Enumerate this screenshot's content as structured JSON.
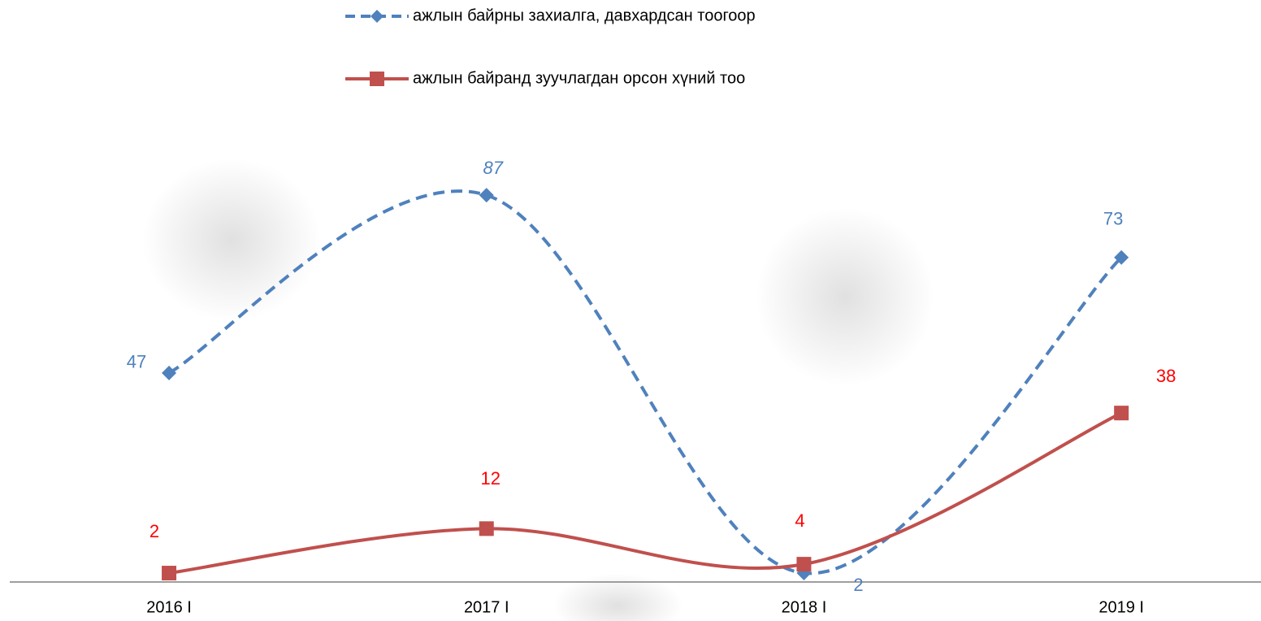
{
  "chart_data": {
    "type": "line",
    "categories": [
      "2016 I",
      "2017 I",
      "2018 I",
      "2019 I"
    ],
    "series": [
      {
        "name": "ажлын байрны захиалга, давхардсан тоогоор",
        "color": "#4f81bd",
        "label_color": "#4f81bd",
        "dashed": true,
        "marker": "diamond",
        "values": [
          47,
          87,
          2,
          73
        ]
      },
      {
        "name": "ажлын байранд зуучлагдан орсон хүний тоо",
        "color": "#c0504d",
        "label_color": "#ff0000",
        "dashed": false,
        "marker": "square",
        "values": [
          2,
          12,
          4,
          38
        ]
      }
    ],
    "ylim": [
      0,
      100
    ],
    "smooth": true,
    "legend": "top"
  }
}
